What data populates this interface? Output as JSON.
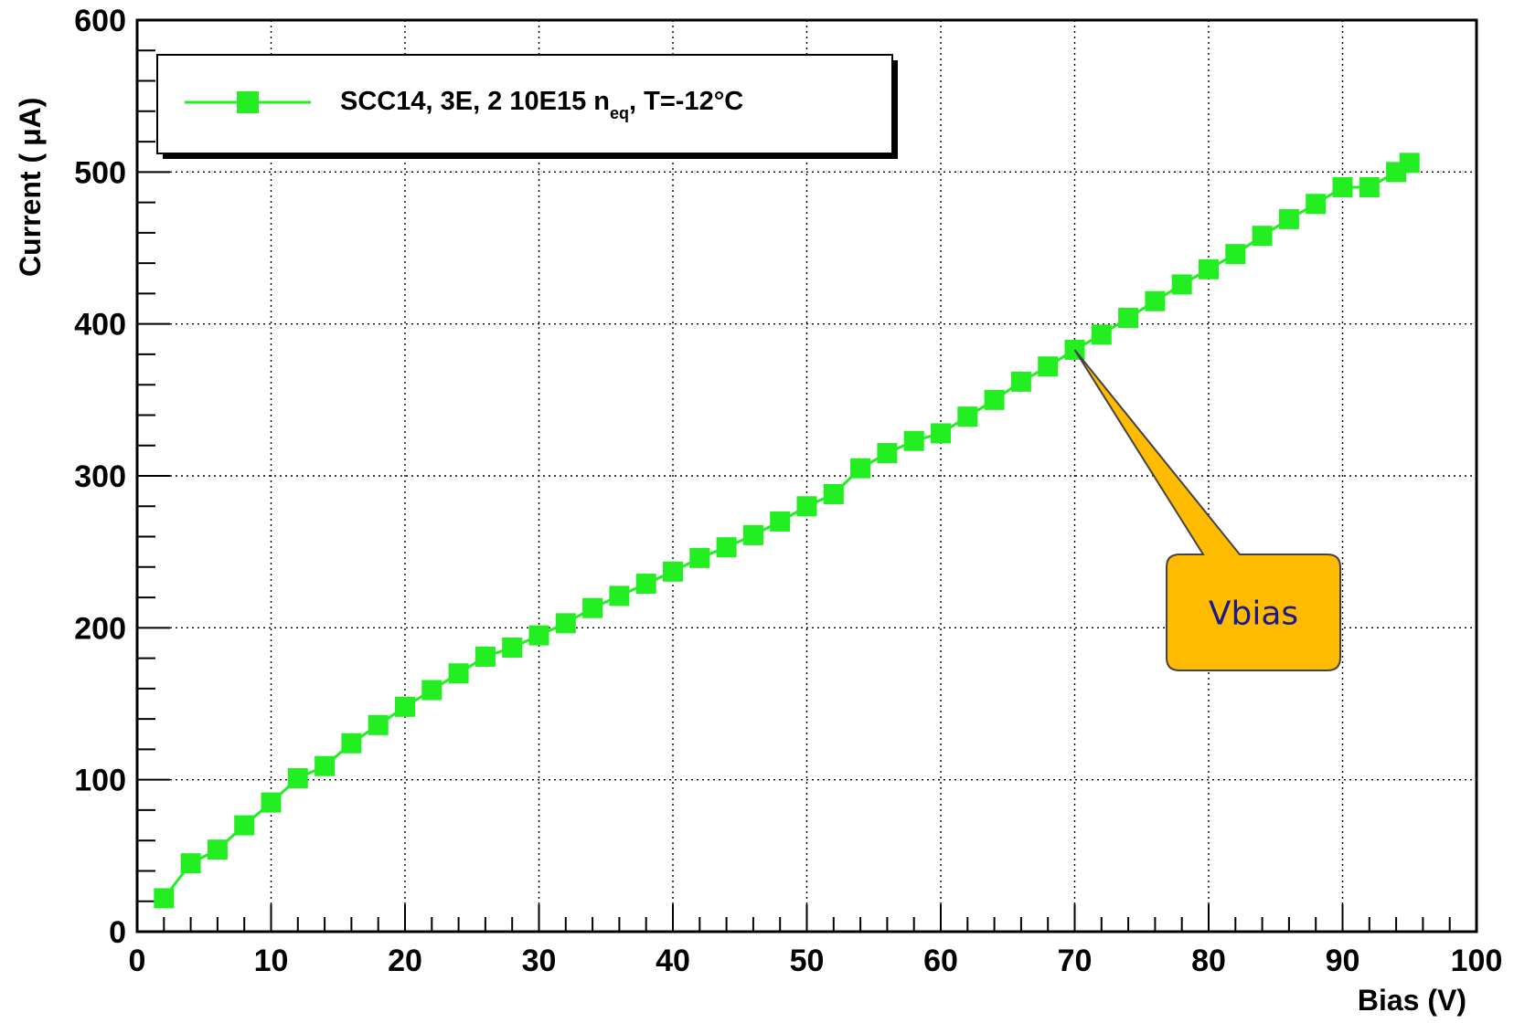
{
  "chart_data": {
    "type": "line",
    "xlabel": "Bias (V)",
    "ylabel_text": "Current (",
    "ylabel_unit": "μA)",
    "xlim": [
      0,
      100
    ],
    "ylim": [
      0,
      600
    ],
    "x_ticks": [
      "0",
      "10",
      "20",
      "30",
      "40",
      "50",
      "60",
      "70",
      "80",
      "90",
      "100"
    ],
    "y_ticks": [
      "0",
      "100",
      "200",
      "300",
      "400",
      "500",
      "600"
    ],
    "grid": true,
    "legend_position": "top-left",
    "series": [
      {
        "name": "SCC14, 3E, 2 10E15 n_eq, T=-12°C",
        "name_main": "SCC14, 3E, 2 10E15 n",
        "name_sub": "eq",
        "name_tail": ", T=-12°C",
        "color": "#22ee22",
        "marker": "square",
        "x": [
          2,
          4,
          6,
          8,
          10,
          12,
          14,
          16,
          18,
          20,
          22,
          24,
          26,
          28,
          30,
          32,
          34,
          36,
          38,
          40,
          42,
          44,
          46,
          48,
          50,
          52,
          54,
          56,
          58,
          60,
          62,
          64,
          66,
          68,
          70,
          72,
          74,
          76,
          78,
          80,
          82,
          84,
          86,
          88,
          90,
          92,
          94,
          95
        ],
        "y": [
          22,
          45,
          54,
          70,
          85,
          101,
          109,
          124,
          136,
          148,
          159,
          170,
          181,
          187,
          195,
          203,
          213,
          221,
          229,
          237,
          246,
          253,
          261,
          270,
          280,
          288,
          305,
          315,
          323,
          328,
          339,
          350,
          362,
          372,
          383,
          393,
          404,
          415,
          426,
          436,
          446,
          458,
          469,
          479,
          490,
          490,
          500,
          506
        ]
      }
    ],
    "annotations": [
      {
        "text": "Vbias",
        "target_x": 70,
        "target_y": 383,
        "color": "#ffbb00"
      }
    ]
  }
}
